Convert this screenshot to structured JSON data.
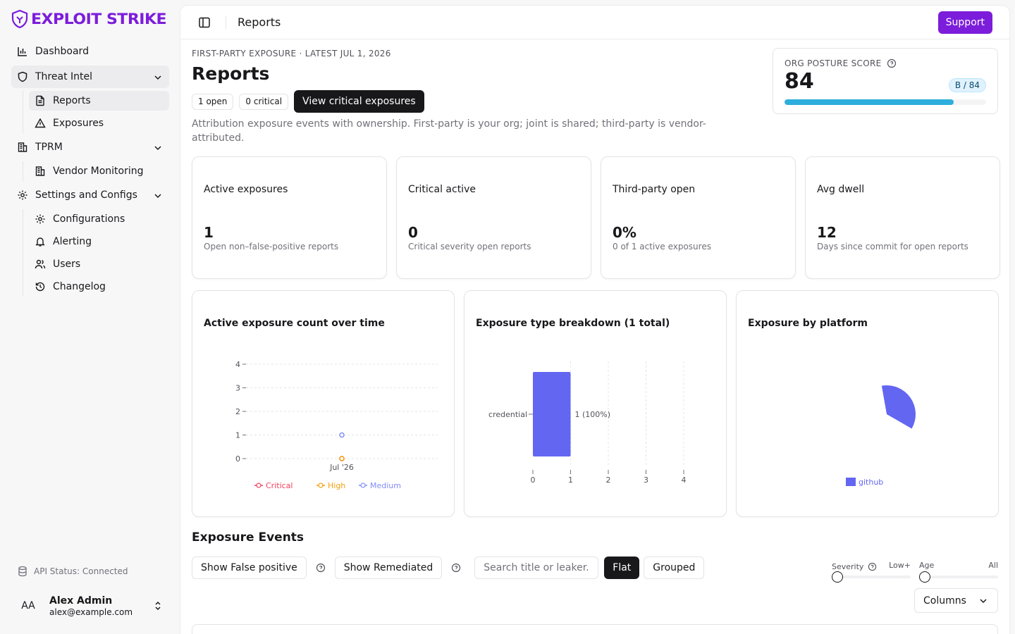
{
  "brand": {
    "name": "EXPLOIT STRIKE",
    "color": "#7c1ddb"
  },
  "sidebar": {
    "items": [
      {
        "label": "Dashboard",
        "icon": "bar-chart-icon"
      },
      {
        "label": "Threat Intel",
        "icon": "shield-icon",
        "expanded": true,
        "children": [
          {
            "label": "Reports",
            "icon": "file-text-icon",
            "active": true
          },
          {
            "label": "Exposures",
            "icon": "alert-triangle-icon"
          }
        ]
      },
      {
        "label": "TPRM",
        "icon": "building-icon",
        "expanded": true,
        "children": [
          {
            "label": "Vendor Monitoring",
            "icon": "building-icon"
          }
        ]
      },
      {
        "label": "Settings and Configs",
        "icon": "gear-icon",
        "expanded": true,
        "children": [
          {
            "label": "Configurations",
            "icon": "gear-icon"
          },
          {
            "label": "Alerting",
            "icon": "bell-icon"
          },
          {
            "label": "Users",
            "icon": "users-icon"
          },
          {
            "label": "Changelog",
            "icon": "history-icon"
          }
        ]
      }
    ],
    "api_status": "API Status: Connected",
    "user": {
      "initials": "AA",
      "name": "Alex Admin",
      "email": "alex@example.com"
    }
  },
  "topbar": {
    "title": "Reports",
    "support_label": "Support"
  },
  "header": {
    "eyebrow": "FIRST-PARTY EXPOSURE · LATEST JUL 1, 2026",
    "title": "Reports",
    "badge_open": "1 open",
    "badge_critical": "0 critical",
    "view_critical_label": "View critical exposures",
    "description": "Attribution exposure events with ownership. First-party is your org; joint is shared; third-party is vendor-attributed."
  },
  "posture": {
    "label": "ORG POSTURE SCORE",
    "score": "84",
    "grade": "B / 84",
    "fill_pct": 84,
    "bar_color": "#2eaedc"
  },
  "stats": [
    {
      "title": "Active exposures",
      "value": "1",
      "sub": "Open non–false-positive reports"
    },
    {
      "title": "Critical active",
      "value": "0",
      "sub": "Critical severity open reports"
    },
    {
      "title": "Third-party open",
      "value": "0%",
      "sub": "0 of 1 active exposures"
    },
    {
      "title": "Avg dwell",
      "value": "12",
      "sub": "Days since commit for open reports"
    }
  ],
  "chart_data": [
    {
      "type": "line",
      "title": "Active exposure count over time",
      "x": [
        "Jul '26"
      ],
      "ylim": [
        0,
        4
      ],
      "yticks": [
        0,
        1,
        2,
        3,
        4
      ],
      "series": [
        {
          "name": "Critical",
          "values": [
            0
          ],
          "color": "#f43f5e"
        },
        {
          "name": "High",
          "values": [
            0
          ],
          "color": "#f59e0b"
        },
        {
          "name": "Medium",
          "values": [
            1
          ],
          "color": "#818cf8"
        }
      ],
      "legend": "bottom",
      "grid": true
    },
    {
      "type": "bar",
      "orientation": "horizontal",
      "title": "Exposure type breakdown (1 total)",
      "categories": [
        "credential"
      ],
      "values": [
        1
      ],
      "labels": [
        "1 (100%)"
      ],
      "xlim": [
        0,
        4
      ],
      "xticks": [
        0,
        1,
        2,
        3,
        4
      ],
      "color": "#6366f1",
      "grid": true
    },
    {
      "type": "pie",
      "title": "Exposure by platform",
      "categories": [
        "github"
      ],
      "values": [
        1
      ],
      "color": "#6366f1",
      "legend": "bottom"
    }
  ],
  "events": {
    "title": "Exposure Events",
    "show_false_positive": "Show False positive",
    "show_remediated": "Show Remediated",
    "search_placeholder": "Search title or leaker...",
    "flat_label": "Flat",
    "grouped_label": "Grouped",
    "severity_label": "Severity",
    "severity_value": "Low+",
    "age_label": "Age",
    "age_value": "All",
    "columns_label": "Columns"
  }
}
